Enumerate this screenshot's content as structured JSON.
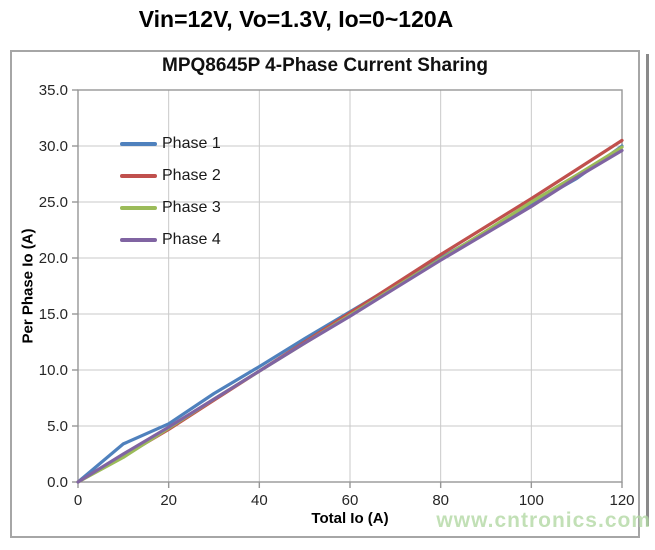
{
  "page": {
    "top_title": "Vin=12V, Vo=1.3V, Io=0~120A",
    "watermark": "www.cntronics.com",
    "watermark_color": "#b3d9a5"
  },
  "chart_data": {
    "type": "line",
    "title": "MPQ8645P 4-Phase Current Sharing",
    "xlabel": "Total Io (A)",
    "ylabel": "Per Phase Io (A)",
    "xlim": [
      0,
      120
    ],
    "ylim": [
      0,
      35
    ],
    "xticks": [
      0,
      20,
      40,
      60,
      80,
      100,
      120
    ],
    "yticks": [
      0,
      5,
      10,
      15,
      20,
      25,
      30,
      35
    ],
    "grid": true,
    "legend_position": "upper-left-inside",
    "gridline_color": "#c9c9c9",
    "axis_color": "#969696",
    "tick_label_color": "#262626",
    "x": [
      0,
      10,
      20,
      30,
      40,
      50,
      60,
      70,
      80,
      90,
      100,
      110,
      120
    ],
    "series": [
      {
        "name": "Phase 1",
        "color": "#4F81BD",
        "values": [
          0,
          3.4,
          5.2,
          7.9,
          10.3,
          12.8,
          15.2,
          17.6,
          20.0,
          22.3,
          24.8,
          27.1,
          30.0
        ]
      },
      {
        "name": "Phase 2",
        "color": "#C0504D",
        "values": [
          0,
          2.3,
          4.7,
          7.3,
          9.9,
          12.5,
          15.1,
          17.7,
          20.3,
          22.8,
          25.3,
          27.9,
          30.5
        ]
      },
      {
        "name": "Phase 3",
        "color": "#9BBB59",
        "values": [
          0,
          2.2,
          4.8,
          7.4,
          9.9,
          12.4,
          14.9,
          17.4,
          19.9,
          22.4,
          25.0,
          27.4,
          29.9
        ]
      },
      {
        "name": "Phase 4",
        "color": "#8064A2",
        "values": [
          0,
          2.5,
          4.9,
          7.4,
          9.9,
          12.4,
          14.8,
          17.3,
          19.8,
          22.2,
          24.6,
          27.2,
          29.6
        ]
      }
    ]
  }
}
